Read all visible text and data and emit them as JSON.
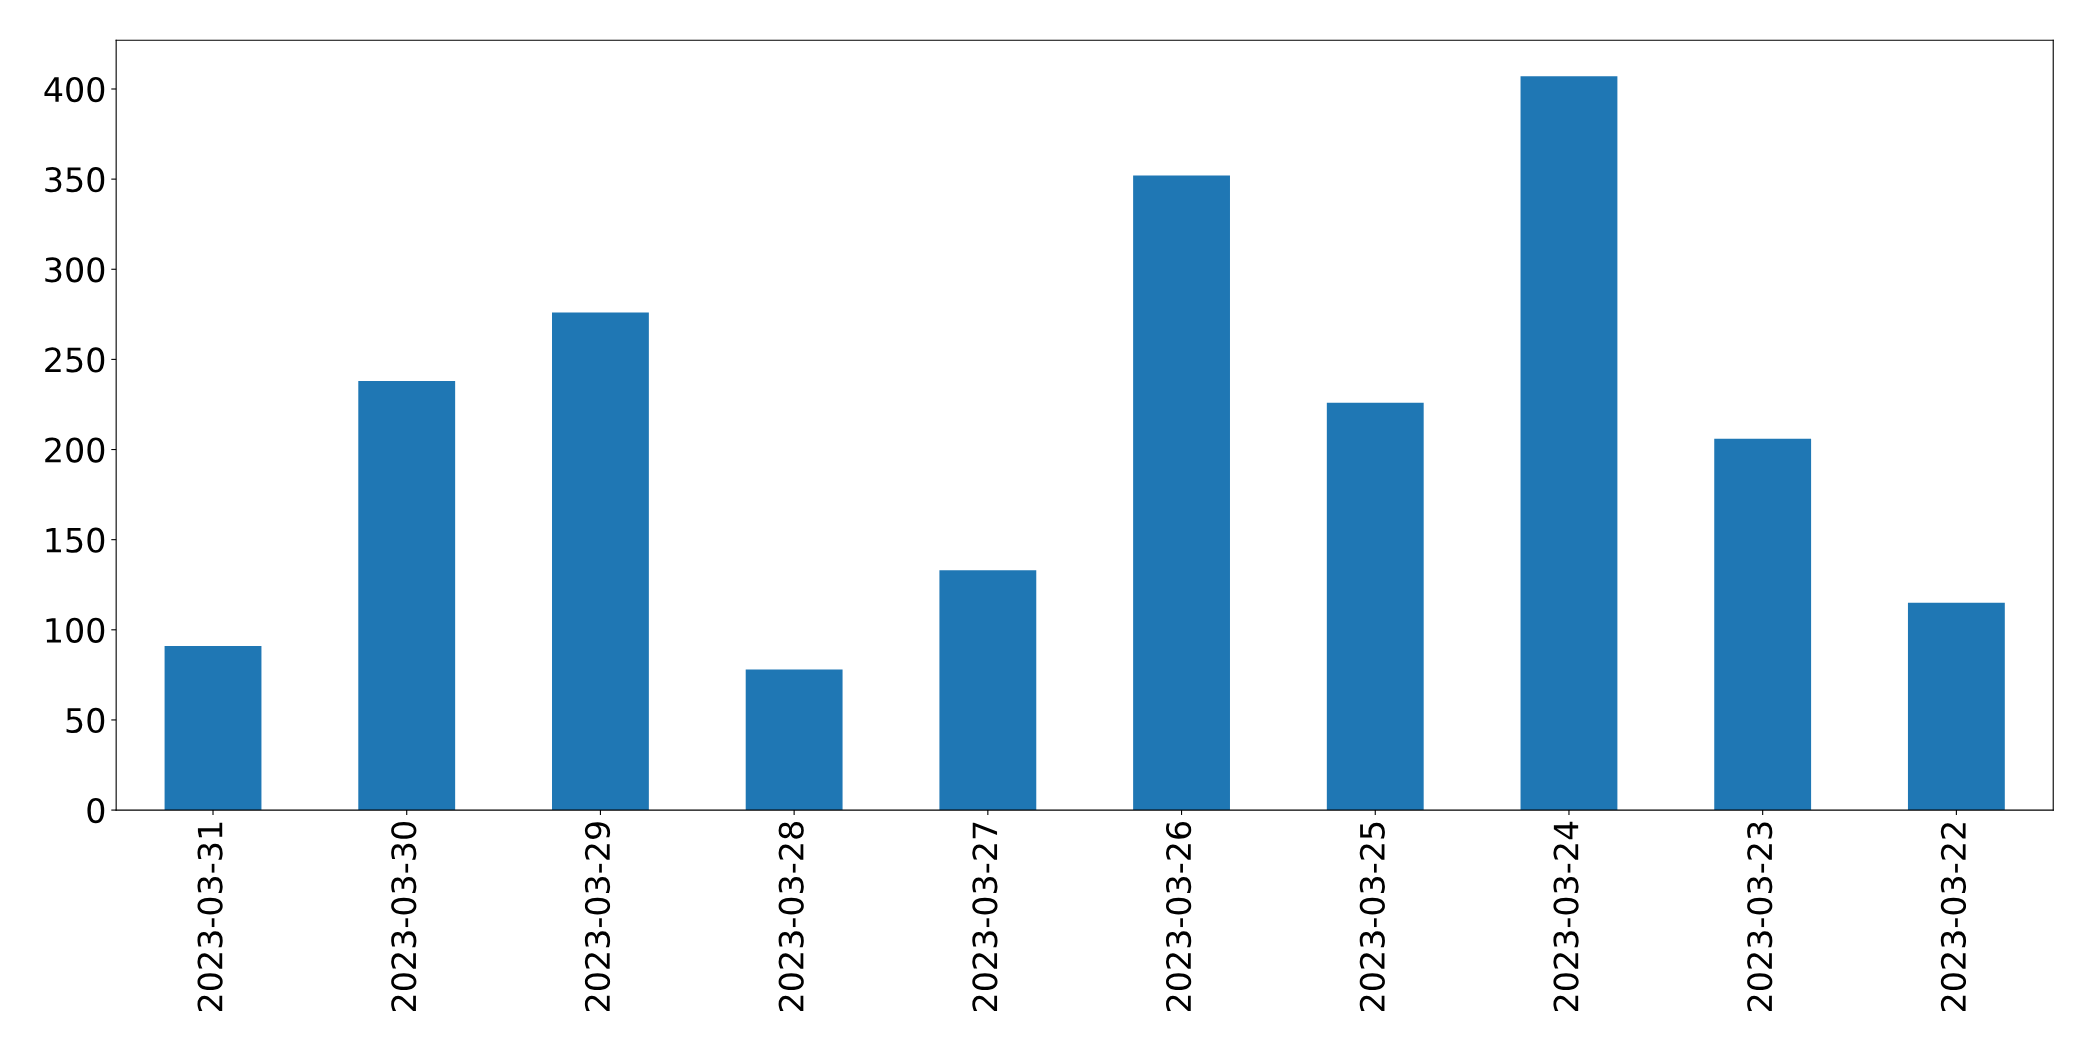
{
  "chart_data": {
    "type": "bar",
    "categories": [
      "2023-03-31",
      "2023-03-30",
      "2023-03-29",
      "2023-03-28",
      "2023-03-27",
      "2023-03-26",
      "2023-03-25",
      "2023-03-24",
      "2023-03-23",
      "2023-03-22"
    ],
    "values": [
      91,
      238,
      276,
      78,
      133,
      352,
      226,
      407,
      206,
      115
    ],
    "color": "#1f77b4",
    "ylim": [
      0,
      427
    ],
    "yticks": [
      0,
      50,
      100,
      150,
      200,
      250,
      300,
      350,
      400
    ],
    "grid": false,
    "legend": false
  }
}
